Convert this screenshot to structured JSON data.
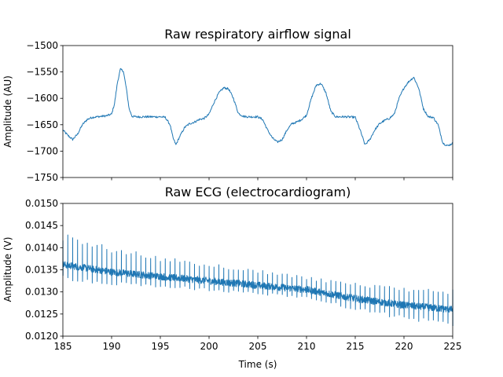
{
  "figure": {
    "xlabel": "Time (s)"
  },
  "colors": {
    "series": "#1f77b4",
    "axes": "#000000",
    "background": "#ffffff"
  },
  "chart_data": [
    {
      "type": "line",
      "title": "Raw respiratory airflow signal",
      "xlabel": "",
      "ylabel": "Amplitude (AU)",
      "xlim": [
        185,
        225
      ],
      "ylim": [
        -1750,
        -1500
      ],
      "xticks": [
        185,
        190,
        195,
        200,
        205,
        210,
        215,
        220,
        225
      ],
      "xtick_labels_visible": false,
      "yticks": [
        -1750,
        -1700,
        -1650,
        -1600,
        -1550,
        -1500
      ],
      "ytick_labels": [
        "−1750",
        "−1700",
        "−1650",
        "−1600",
        "−1550",
        "−1500"
      ],
      "grid": false,
      "series": [
        {
          "x": [
            185.0,
            185.5,
            186.0,
            186.5,
            187.0,
            187.5,
            188.0,
            188.5,
            189.0,
            189.5,
            190.0,
            190.3,
            190.6,
            190.9,
            191.2,
            191.5,
            191.8,
            192.1,
            192.5,
            193.0,
            194.0,
            195.0,
            195.5,
            196.0,
            196.3,
            196.6,
            197.0,
            197.5,
            198.0,
            198.5,
            199.0,
            199.5,
            200.0,
            200.5,
            201.0,
            201.5,
            202.0,
            202.5,
            203.0,
            203.5,
            204.0,
            205.0,
            205.5,
            206.0,
            206.5,
            207.0,
            207.5,
            208.0,
            208.5,
            209.0,
            209.5,
            210.0,
            210.5,
            211.0,
            211.5,
            212.0,
            212.5,
            213.0,
            214.0,
            215.0,
            215.5,
            216.0,
            216.5,
            217.0,
            217.5,
            218.0,
            218.5,
            219.0,
            219.5,
            220.0,
            220.5,
            221.0,
            221.5,
            222.0,
            222.5,
            223.0,
            223.5,
            224.0,
            224.5,
            225.0
          ],
          "y": [
            -1660,
            -1670,
            -1678,
            -1668,
            -1650,
            -1640,
            -1636,
            -1635,
            -1634,
            -1633,
            -1630,
            -1610,
            -1570,
            -1545,
            -1548,
            -1580,
            -1620,
            -1634,
            -1635,
            -1635,
            -1635,
            -1635,
            -1636,
            -1650,
            -1675,
            -1688,
            -1672,
            -1655,
            -1648,
            -1645,
            -1640,
            -1638,
            -1630,
            -1608,
            -1590,
            -1580,
            -1582,
            -1600,
            -1628,
            -1634,
            -1635,
            -1635,
            -1640,
            -1660,
            -1675,
            -1683,
            -1678,
            -1660,
            -1648,
            -1645,
            -1640,
            -1632,
            -1600,
            -1575,
            -1572,
            -1590,
            -1625,
            -1635,
            -1635,
            -1636,
            -1660,
            -1688,
            -1678,
            -1660,
            -1648,
            -1642,
            -1638,
            -1630,
            -1600,
            -1580,
            -1568,
            -1560,
            -1580,
            -1620,
            -1635,
            -1636,
            -1650,
            -1685,
            -1690,
            -1685
          ]
        }
      ]
    },
    {
      "type": "line",
      "title": "Raw ECG (electrocardiogram)",
      "xlabel": "Time (s)",
      "ylabel": "Amplitude (V)",
      "xlim": [
        185,
        225
      ],
      "ylim": [
        0.012,
        0.015
      ],
      "xticks": [
        185,
        190,
        195,
        200,
        205,
        210,
        215,
        220,
        225
      ],
      "xtick_labels": [
        "185",
        "190",
        "195",
        "200",
        "205",
        "210",
        "215",
        "220",
        "225"
      ],
      "yticks": [
        0.012,
        0.0125,
        0.013,
        0.0135,
        0.014,
        0.0145,
        0.015
      ],
      "ytick_labels": [
        "0.0120",
        "0.0125",
        "0.0130",
        "0.0135",
        "0.0140",
        "0.0145",
        "0.0150"
      ],
      "grid": false,
      "series": [
        {
          "signal_model": "beats",
          "beat_interval_s": 0.5,
          "baseline": {
            "x": [
              185,
              190,
              200,
              210,
              215,
              220,
              225
            ],
            "y": [
              0.01362,
              0.01345,
              0.01325,
              0.01305,
              0.01285,
              0.0127,
              0.0126
            ]
          },
          "peak_amplitude": {
            "x": [
              185,
              195,
              210,
              225
            ],
            "y": [
              0.0007,
              0.00045,
              0.0003,
              0.00045
            ]
          },
          "trough_amplitude": {
            "x": [
              185,
              195,
              210,
              225
            ],
            "y": [
              0.00035,
              0.00025,
              0.0002,
              0.0004
            ]
          },
          "noise_amplitude": 8e-05
        }
      ]
    }
  ]
}
